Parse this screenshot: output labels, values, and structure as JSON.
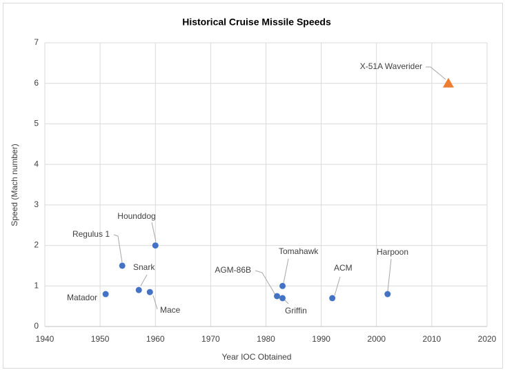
{
  "chart_data": {
    "type": "scatter",
    "title": "Historical Cruise Missile Speeds",
    "x_label": "Year IOC Obtained",
    "y_label": "Speed (Mach number)",
    "xlim": [
      1940,
      2020
    ],
    "xticks": [
      1940,
      1950,
      1960,
      1970,
      1980,
      1990,
      2000,
      2010,
      2020
    ],
    "ylim": [
      0,
      7
    ],
    "yticks": [
      0,
      1,
      2,
      3,
      4,
      5,
      6,
      7
    ],
    "grid": true,
    "series": [
      {
        "color": "#4472c4",
        "marker": "circle",
        "x": [
          1951,
          1954,
          1957,
          1959,
          1960,
          1982,
          1983,
          1983,
          1992,
          2002
        ],
        "values": [
          0.8,
          1.5,
          0.9,
          0.85,
          2.0,
          0.75,
          0.7,
          1.0,
          0.7,
          0.8
        ],
        "labels": [
          "Matador",
          "Regulus 1",
          "Snark",
          "Mace",
          "Hounddog",
          "AGM-86B",
          "Griffin",
          "Tomahawk",
          "ACM",
          "Harpoon"
        ]
      },
      {
        "color": "#ed7d31",
        "marker": "triangle",
        "x": [
          2013
        ],
        "values": [
          6.0
        ],
        "labels": [
          "X-51A Waverider"
        ]
      }
    ]
  }
}
